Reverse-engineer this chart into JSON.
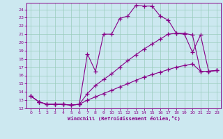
{
  "xlabel": "Windchill (Refroidissement éolien,°C)",
  "bg_color": "#cce8f0",
  "grid_color": "#99ccbb",
  "line_color": "#880088",
  "xlim": [
    -0.5,
    23.5
  ],
  "ylim": [
    12,
    24.8
  ],
  "yticks": [
    12,
    13,
    14,
    15,
    16,
    17,
    18,
    19,
    20,
    21,
    22,
    23,
    24
  ],
  "xticks": [
    0,
    1,
    2,
    3,
    4,
    5,
    6,
    7,
    8,
    9,
    10,
    11,
    12,
    13,
    14,
    15,
    16,
    17,
    18,
    19,
    20,
    21,
    22,
    23
  ],
  "curve1_x": [
    0,
    1,
    2,
    3,
    4,
    5,
    6,
    7,
    8,
    9,
    10,
    11,
    12,
    13,
    14,
    15,
    16,
    17,
    18,
    19,
    20,
    21,
    22,
    23
  ],
  "curve1_y": [
    13.5,
    12.8,
    12.5,
    12.5,
    12.5,
    12.4,
    12.5,
    18.6,
    16.5,
    21.0,
    21.0,
    22.9,
    23.2,
    24.5,
    24.4,
    24.4,
    23.2,
    22.7,
    21.1,
    21.0,
    18.8,
    20.9,
    16.5,
    16.6
  ],
  "curve2_x": [
    0,
    1,
    2,
    3,
    4,
    5,
    6,
    7,
    8,
    9,
    10,
    11,
    12,
    13,
    14,
    15,
    16,
    17,
    18,
    19,
    20,
    21,
    22,
    23
  ],
  "curve2_y": [
    13.5,
    12.8,
    12.5,
    12.5,
    12.5,
    12.4,
    12.5,
    13.8,
    14.8,
    15.5,
    16.2,
    17.0,
    17.8,
    18.5,
    19.2,
    19.8,
    20.4,
    21.0,
    21.1,
    21.1,
    20.9,
    16.5,
    16.5,
    16.6
  ],
  "curve3_x": [
    0,
    1,
    2,
    3,
    4,
    5,
    6,
    7,
    8,
    9,
    10,
    11,
    12,
    13,
    14,
    15,
    16,
    17,
    18,
    19,
    20,
    21,
    22,
    23
  ],
  "curve3_y": [
    13.5,
    12.8,
    12.5,
    12.5,
    12.5,
    12.4,
    12.5,
    13.0,
    13.4,
    13.8,
    14.2,
    14.6,
    15.0,
    15.4,
    15.8,
    16.1,
    16.4,
    16.7,
    17.0,
    17.2,
    17.4,
    16.5,
    16.5,
    16.6
  ]
}
